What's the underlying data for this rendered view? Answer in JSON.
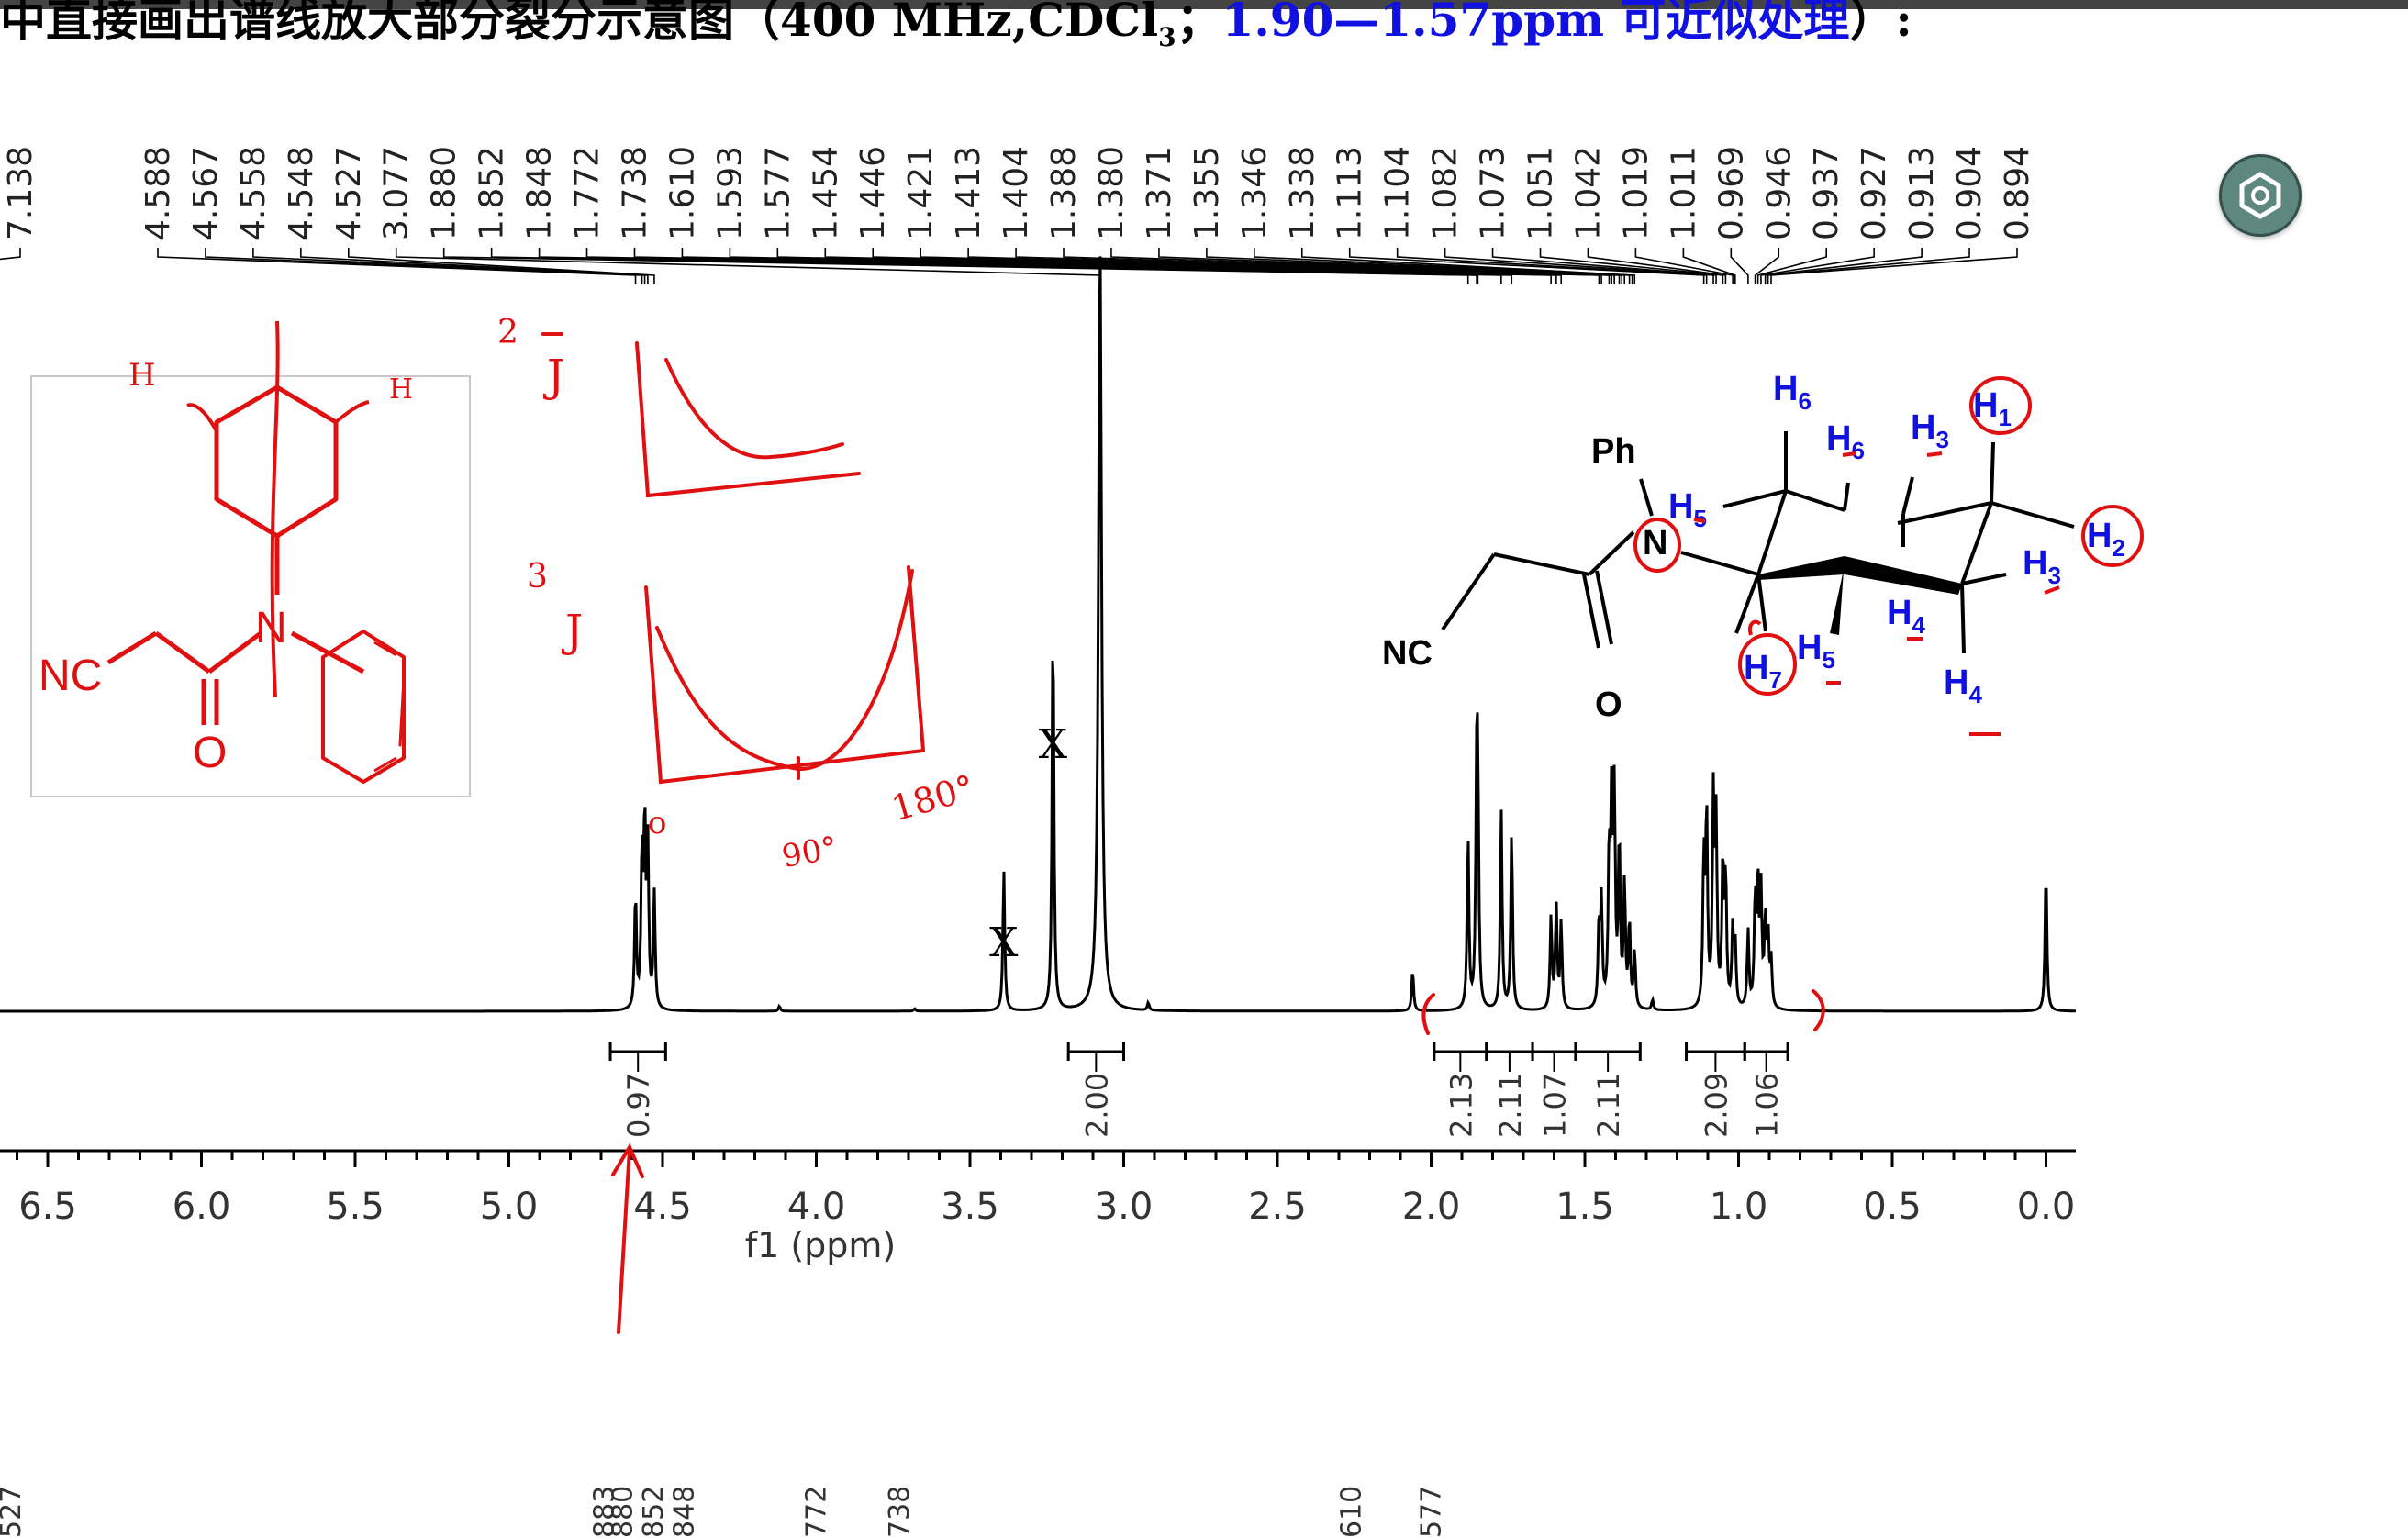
{
  "header": {
    "title_text": "中直接画出谱线放大部分裂分示意图（400 MHz,CDCl",
    "title_sub": "3",
    "title_sep": "；",
    "title_blue": "1.90—1.57ppm 可近似处理",
    "title_end": "）:"
  },
  "chart_data": {
    "type": "line",
    "title": "",
    "xlabel": "f1 (ppm)",
    "ylabel": "",
    "xlim": [
      6.65,
      -0.05
    ],
    "x_ticks": [
      "6.5",
      "6.0",
      "5.5",
      "5.0",
      "4.5",
      "4.0",
      "3.5",
      "3.0",
      "2.5",
      "2.0",
      "1.5",
      "1.0",
      "0.5",
      "0.0"
    ],
    "x_tick_values": [
      6.5,
      6.0,
      5.5,
      5.0,
      4.5,
      4.0,
      3.5,
      3.0,
      2.5,
      2.0,
      1.5,
      1.0,
      0.5,
      0.0
    ],
    "peak_labels_top": [
      "7.138",
      "4.588",
      "4.567",
      "4.558",
      "4.548",
      "4.527",
      "3.077",
      "1.880",
      "1.852",
      "1.848",
      "1.772",
      "1.738",
      "1.610",
      "1.593",
      "1.577",
      "1.454",
      "1.446",
      "1.421",
      "1.413",
      "1.404",
      "1.388",
      "1.380",
      "1.371",
      "1.355",
      "1.346",
      "1.338",
      "1.113",
      "1.104",
      "1.082",
      "1.073",
      "1.051",
      "1.042",
      "1.019",
      "1.011",
      "0.969",
      "0.946",
      "0.937",
      "0.927",
      "0.913",
      "0.904",
      "0.894"
    ],
    "peak_label_values": [
      7.138,
      4.588,
      4.567,
      4.558,
      4.548,
      4.527,
      3.077,
      1.88,
      1.852,
      1.848,
      1.772,
      1.738,
      1.61,
      1.593,
      1.577,
      1.454,
      1.446,
      1.421,
      1.413,
      1.404,
      1.388,
      1.38,
      1.371,
      1.355,
      1.346,
      1.338,
      1.113,
      1.104,
      1.082,
      1.073,
      1.051,
      1.042,
      1.019,
      1.011,
      0.969,
      0.946,
      0.937,
      0.927,
      0.913,
      0.904,
      0.894
    ],
    "peaks": [
      {
        "ppm": 4.588,
        "h": 0.45
      },
      {
        "ppm": 4.567,
        "h": 0.6
      },
      {
        "ppm": 4.558,
        "h": 0.72
      },
      {
        "ppm": 4.548,
        "h": 0.62
      },
      {
        "ppm": 4.527,
        "h": 0.45
      },
      {
        "ppm": 4.12,
        "h": 0.02
      },
      {
        "ppm": 3.68,
        "h": 0.01
      },
      {
        "ppm": 3.39,
        "h": 0.55
      },
      {
        "ppm": 3.23,
        "h": 1.56
      },
      {
        "ppm": 3.077,
        "h": 3.0
      },
      {
        "ppm": 2.92,
        "h": 0.03
      },
      {
        "ppm": 2.06,
        "h": 0.16
      },
      {
        "ppm": 1.88,
        "h": 0.68
      },
      {
        "ppm": 1.852,
        "h": 0.8
      },
      {
        "ppm": 1.848,
        "h": 0.74
      },
      {
        "ppm": 1.772,
        "h": 0.78
      },
      {
        "ppm": 1.738,
        "h": 0.7
      },
      {
        "ppm": 1.61,
        "h": 0.36
      },
      {
        "ppm": 1.593,
        "h": 0.4
      },
      {
        "ppm": 1.577,
        "h": 0.34
      },
      {
        "ppm": 1.454,
        "h": 0.32
      },
      {
        "ppm": 1.446,
        "h": 0.4
      },
      {
        "ppm": 1.421,
        "h": 0.58
      },
      {
        "ppm": 1.413,
        "h": 0.74
      },
      {
        "ppm": 1.404,
        "h": 0.8
      },
      {
        "ppm": 1.388,
        "h": 0.66
      },
      {
        "ppm": 1.371,
        "h": 0.48
      },
      {
        "ppm": 1.355,
        "h": 0.34
      },
      {
        "ppm": 1.338,
        "h": 0.22
      },
      {
        "ppm": 1.28,
        "h": 0.04
      },
      {
        "ppm": 1.113,
        "h": 0.58
      },
      {
        "ppm": 1.104,
        "h": 0.76
      },
      {
        "ppm": 1.082,
        "h": 0.8
      },
      {
        "ppm": 1.073,
        "h": 0.7
      },
      {
        "ppm": 1.051,
        "h": 0.56
      },
      {
        "ppm": 1.042,
        "h": 0.5
      },
      {
        "ppm": 1.019,
        "h": 0.3
      },
      {
        "ppm": 1.011,
        "h": 0.24
      },
      {
        "ppm": 0.969,
        "h": 0.3
      },
      {
        "ppm": 0.946,
        "h": 0.42
      },
      {
        "ppm": 0.937,
        "h": 0.48
      },
      {
        "ppm": 0.927,
        "h": 0.44
      },
      {
        "ppm": 0.913,
        "h": 0.34
      },
      {
        "ppm": 0.904,
        "h": 0.28
      },
      {
        "ppm": 0.894,
        "h": 0.18
      },
      {
        "ppm": 0.0,
        "h": 0.56
      }
    ],
    "integrals": [
      {
        "from": 4.67,
        "to": 4.49,
        "value": "0.97"
      },
      {
        "from": 3.18,
        "to": 3.0,
        "value": "2.00"
      },
      {
        "from": 1.99,
        "to": 1.82,
        "value": "2.13"
      },
      {
        "from": 1.82,
        "to": 1.67,
        "value": "2.11"
      },
      {
        "from": 1.67,
        "to": 1.53,
        "value": "1.07"
      },
      {
        "from": 1.53,
        "to": 1.32,
        "value": "2.11"
      },
      {
        "from": 1.17,
        "to": 0.98,
        "value": "2.09"
      },
      {
        "from": 0.98,
        "to": 0.84,
        "value": "1.06"
      }
    ],
    "bottom_cut_labels": [
      "527",
      "883",
      "880",
      "852",
      "848",
      "772",
      "738",
      "610",
      "577"
    ],
    "bottom_cut_values": [
      6.62,
      4.69,
      4.63,
      4.53,
      4.43,
      4.0,
      3.73,
      2.26,
      2.0
    ],
    "annotations": [
      "X",
      "X",
      "o",
      "90°",
      "180°",
      "2",
      "3",
      "H",
      "H",
      "J",
      "J"
    ],
    "colors": {
      "spectrum": "#000000",
      "annotation": "#e01010",
      "label_blue": "#1010e0"
    }
  },
  "structure_inset": {
    "labels": {
      "nc": "NC",
      "n": "N",
      "o": "O"
    }
  },
  "molecule": {
    "labels": {
      "ph": "Ph",
      "n": "N",
      "nc": "NC",
      "o": "O",
      "h": "H"
    },
    "h_subscripts": [
      "6",
      "6",
      "3",
      "1",
      "5",
      "2",
      "3",
      "4",
      "7",
      "5",
      "4"
    ]
  },
  "fab": {
    "icon": "hexagon-icon"
  }
}
